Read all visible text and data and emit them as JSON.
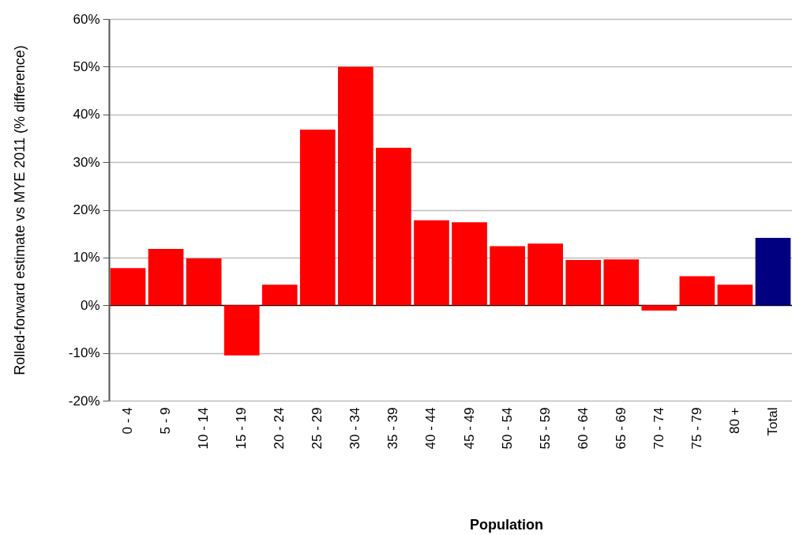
{
  "chart_data": {
    "type": "bar",
    "xlabel": "Population",
    "ylabel": "Rolled-forward estimate vs MYE 2011 (% difference)",
    "categories": [
      "0 - 4",
      "5 - 9",
      "10 - 14",
      "15 - 19",
      "20 - 24",
      "25 - 29",
      "30 - 34",
      "35 - 39",
      "40 - 44",
      "45 - 49",
      "50 - 54",
      "55 - 59",
      "60 - 64",
      "65 - 69",
      "70 - 74",
      "75 - 79",
      "80 +",
      "Total"
    ],
    "values": [
      7.8,
      11.8,
      9.8,
      -10.5,
      4.3,
      36.8,
      50.0,
      33.0,
      17.8,
      17.4,
      12.4,
      12.9,
      9.5,
      9.6,
      -1.1,
      6.1,
      4.3,
      14.1
    ],
    "colors": [
      "#ff0000",
      "#ff0000",
      "#ff0000",
      "#ff0000",
      "#ff0000",
      "#ff0000",
      "#ff0000",
      "#ff0000",
      "#ff0000",
      "#ff0000",
      "#ff0000",
      "#ff0000",
      "#ff0000",
      "#ff0000",
      "#ff0000",
      "#ff0000",
      "#ff0000",
      "#000080"
    ],
    "ylim": [
      -20,
      60
    ],
    "yticks": [
      {
        "value": -20,
        "label": "-20%"
      },
      {
        "value": -10,
        "label": "-10%"
      },
      {
        "value": 0,
        "label": "0%"
      },
      {
        "value": 10,
        "label": "10%"
      },
      {
        "value": 20,
        "label": "20%"
      },
      {
        "value": 30,
        "label": "30%"
      },
      {
        "value": 40,
        "label": "40%"
      },
      {
        "value": 50,
        "label": "50%"
      },
      {
        "value": 60,
        "label": "60%"
      }
    ],
    "grid": "y"
  }
}
